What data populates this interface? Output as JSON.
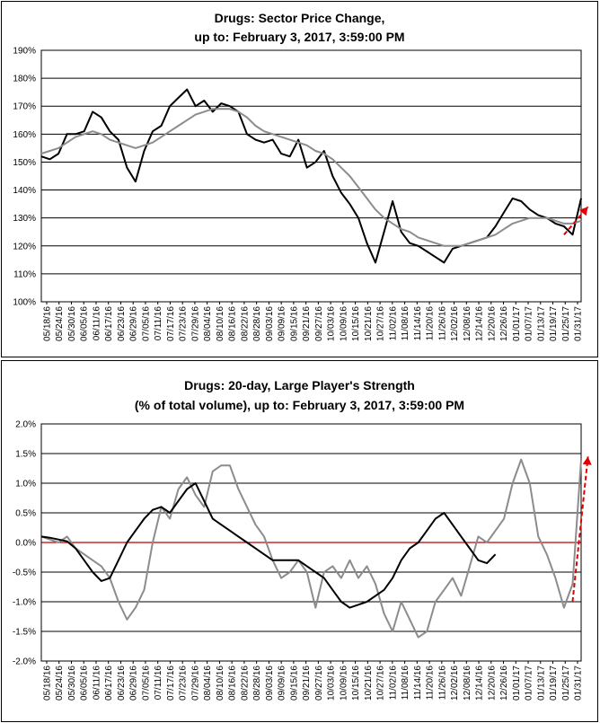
{
  "charts": [
    {
      "title_line1": "Drugs: Sector Price Change,",
      "title_line2": "up to: February 3, 2017, 3:59:00 PM"
    },
    {
      "title_line1": "Drugs: 20-day, Large Player's Strength",
      "title_line2": "(% of total volume), up to: February 3, 2017, 3:59:00 PM"
    }
  ],
  "colors": {
    "price": "#000000",
    "average": "#8c8c8c",
    "strength": "#8c8c8c",
    "zero_line": "#cc0000",
    "arrow": "#e00000"
  },
  "chart_data": [
    {
      "type": "line",
      "title": "Drugs: Sector Price Change, up to: February 3, 2017, 3:59:00 PM",
      "xlabel": "",
      "ylabel": "",
      "y_ticks": [
        "100%",
        "110%",
        "120%",
        "130%",
        "140%",
        "150%",
        "160%",
        "170%",
        "180%",
        "190%"
      ],
      "ylim": [
        100,
        190
      ],
      "grid": true,
      "x_ticks": [
        "05/18/16",
        "05/24/16",
        "05/30/16",
        "06/05/16",
        "06/11/16",
        "06/17/16",
        "06/23/16",
        "06/29/16",
        "07/05/16",
        "07/11/16",
        "07/17/16",
        "07/23/16",
        "07/29/16",
        "08/04/16",
        "08/10/16",
        "08/16/16",
        "08/22/16",
        "08/28/16",
        "09/03/16",
        "09/09/16",
        "09/15/16",
        "09/21/16",
        "09/27/16",
        "10/03/16",
        "10/09/16",
        "10/15/16",
        "10/21/16",
        "10/27/16",
        "11/02/16",
        "11/08/16",
        "11/14/16",
        "11/20/16",
        "11/26/16",
        "12/02/16",
        "12/08/16",
        "12/14/16",
        "12/20/16",
        "12/26/16",
        "01/01/17",
        "01/07/17",
        "01/13/17",
        "01/19/17",
        "01/25/17",
        "01/31/17"
      ],
      "series": [
        {
          "values": [
            [
              0,
              152
            ],
            [
              1,
              151
            ],
            [
              2,
              153
            ],
            [
              3,
              160
            ],
            [
              4,
              160
            ],
            [
              5,
              161
            ],
            [
              6,
              168
            ],
            [
              7,
              166
            ],
            [
              8,
              161
            ],
            [
              9,
              158
            ],
            [
              10,
              148
            ],
            [
              11,
              143
            ],
            [
              12,
              154
            ],
            [
              13,
              161
            ],
            [
              14,
              163
            ],
            [
              15,
              170
            ],
            [
              16,
              173
            ],
            [
              17,
              176
            ],
            [
              18,
              170
            ],
            [
              19,
              172
            ],
            [
              20,
              168
            ],
            [
              21,
              171
            ],
            [
              22,
              170
            ],
            [
              23,
              168
            ],
            [
              24,
              160
            ],
            [
              25,
              158
            ],
            [
              26,
              157
            ],
            [
              27,
              158
            ],
            [
              28,
              153
            ],
            [
              29,
              152
            ],
            [
              30,
              158
            ],
            [
              31,
              148
            ],
            [
              32,
              150
            ],
            [
              33,
              154
            ],
            [
              34,
              145
            ],
            [
              35,
              139
            ],
            [
              36,
              135
            ],
            [
              37,
              130
            ],
            [
              38,
              121
            ],
            [
              39,
              114
            ],
            [
              40,
              125
            ],
            [
              41,
              136
            ],
            [
              42,
              125
            ],
            [
              43,
              121
            ],
            [
              44,
              120
            ],
            [
              45,
              118
            ],
            [
              46,
              116
            ],
            [
              47,
              114
            ],
            [
              48,
              119
            ],
            [
              49,
              120
            ],
            [
              50,
              121
            ],
            [
              51,
              122
            ],
            [
              52,
              123
            ],
            [
              53,
              127
            ],
            [
              54,
              132
            ],
            [
              55,
              137
            ],
            [
              56,
              136
            ],
            [
              57,
              133
            ],
            [
              58,
              131
            ],
            [
              59,
              130
            ],
            [
              60,
              128
            ],
            [
              61,
              127
            ],
            [
              62,
              124
            ],
            [
              63,
              137
            ]
          ]
        },
        {
          "values": [
            [
              0,
              153
            ],
            [
              1,
              154
            ],
            [
              2,
              155
            ],
            [
              3,
              157
            ],
            [
              4,
              159
            ],
            [
              5,
              160
            ],
            [
              6,
              161
            ],
            [
              7,
              160
            ],
            [
              8,
              158
            ],
            [
              9,
              157
            ],
            [
              10,
              156
            ],
            [
              11,
              155
            ],
            [
              12,
              156
            ],
            [
              13,
              157
            ],
            [
              14,
              159
            ],
            [
              15,
              161
            ],
            [
              16,
              163
            ],
            [
              17,
              165
            ],
            [
              18,
              167
            ],
            [
              19,
              168
            ],
            [
              20,
              169
            ],
            [
              21,
              169
            ],
            [
              22,
              169
            ],
            [
              23,
              168
            ],
            [
              24,
              166
            ],
            [
              25,
              163
            ],
            [
              26,
              161
            ],
            [
              27,
              160
            ],
            [
              28,
              159
            ],
            [
              29,
              158
            ],
            [
              30,
              157
            ],
            [
              31,
              156
            ],
            [
              32,
              154
            ],
            [
              33,
              153
            ],
            [
              34,
              151
            ],
            [
              35,
              148
            ],
            [
              36,
              145
            ],
            [
              37,
              141
            ],
            [
              38,
              137
            ],
            [
              39,
              133
            ],
            [
              40,
              130
            ],
            [
              41,
              128
            ],
            [
              42,
              126
            ],
            [
              43,
              125
            ],
            [
              44,
              123
            ],
            [
              45,
              122
            ],
            [
              46,
              121
            ],
            [
              47,
              120
            ],
            [
              48,
              120
            ],
            [
              49,
              120
            ],
            [
              50,
              121
            ],
            [
              51,
              122
            ],
            [
              52,
              123
            ],
            [
              53,
              124
            ],
            [
              54,
              126
            ],
            [
              55,
              128
            ],
            [
              56,
              129
            ],
            [
              57,
              130
            ],
            [
              58,
              130
            ],
            [
              59,
              130
            ],
            [
              60,
              129
            ],
            [
              61,
              128
            ],
            [
              62,
              128
            ],
            [
              63,
              129
            ]
          ]
        }
      ]
    },
    {
      "type": "line",
      "title": "Drugs: 20-day, Large Player's Strength (% of total volume), up to: February 3, 2017, 3:59:00 PM",
      "xlabel": "",
      "ylabel": "",
      "y_ticks": [
        "-2.0%",
        "-1.5%",
        "-1.0%",
        "-0.5%",
        "0.0%",
        "0.5%",
        "1.0%",
        "1.5%",
        "2.0%"
      ],
      "ylim": [
        -2.0,
        2.0
      ],
      "grid": true,
      "x_ticks": [
        "05/18/16",
        "05/24/16",
        "05/30/16",
        "06/05/16",
        "06/11/16",
        "06/17/16",
        "06/23/16",
        "06/29/16",
        "07/05/16",
        "07/11/16",
        "07/17/16",
        "07/23/16",
        "07/29/16",
        "08/04/16",
        "08/10/16",
        "08/16/16",
        "08/22/16",
        "08/28/16",
        "09/03/16",
        "09/09/16",
        "09/15/16",
        "09/21/16",
        "09/27/16",
        "10/03/16",
        "10/09/16",
        "10/15/16",
        "10/21/16",
        "10/27/16",
        "11/02/16",
        "11/08/16",
        "11/14/16",
        "11/20/16",
        "11/26/16",
        "12/02/16",
        "12/08/16",
        "12/14/16",
        "12/20/16",
        "12/26/16",
        "01/01/17",
        "01/07/17",
        "01/13/17",
        "01/19/17",
        "01/25/17",
        "01/31/17"
      ],
      "series": [
        {
          "values": [
            [
              0,
              0.1
            ],
            [
              1,
              0.05
            ],
            [
              2,
              0.0
            ],
            [
              3,
              0.1
            ],
            [
              4,
              -0.1
            ],
            [
              5,
              -0.2
            ],
            [
              6,
              -0.3
            ],
            [
              7,
              -0.4
            ],
            [
              8,
              -0.6
            ],
            [
              9,
              -1.0
            ],
            [
              10,
              -1.3
            ],
            [
              11,
              -1.1
            ],
            [
              12,
              -0.8
            ],
            [
              13,
              0.0
            ],
            [
              14,
              0.6
            ],
            [
              15,
              0.4
            ],
            [
              16,
              0.9
            ],
            [
              17,
              1.1
            ],
            [
              18,
              0.8
            ],
            [
              19,
              0.6
            ],
            [
              20,
              1.2
            ],
            [
              21,
              1.3
            ],
            [
              22,
              1.3
            ],
            [
              23,
              0.9
            ],
            [
              24,
              0.6
            ],
            [
              25,
              0.3
            ],
            [
              26,
              0.1
            ],
            [
              27,
              -0.3
            ],
            [
              28,
              -0.6
            ],
            [
              29,
              -0.5
            ],
            [
              30,
              -0.3
            ],
            [
              31,
              -0.5
            ],
            [
              32,
              -1.1
            ],
            [
              33,
              -0.5
            ],
            [
              34,
              -0.4
            ],
            [
              35,
              -0.6
            ],
            [
              36,
              -0.3
            ],
            [
              37,
              -0.6
            ],
            [
              38,
              -0.4
            ],
            [
              39,
              -0.7
            ],
            [
              40,
              -1.2
            ],
            [
              41,
              -1.5
            ],
            [
              42,
              -1.0
            ],
            [
              43,
              -1.3
            ],
            [
              44,
              -1.6
            ],
            [
              45,
              -1.5
            ],
            [
              46,
              -1.0
            ],
            [
              47,
              -0.8
            ],
            [
              48,
              -0.6
            ],
            [
              49,
              -0.9
            ],
            [
              50,
              -0.4
            ],
            [
              51,
              0.1
            ],
            [
              52,
              0.0
            ],
            [
              53,
              0.2
            ],
            [
              54,
              0.4
            ],
            [
              55,
              1.0
            ],
            [
              56,
              1.4
            ],
            [
              57,
              1.0
            ],
            [
              58,
              0.1
            ],
            [
              59,
              -0.2
            ],
            [
              60,
              -0.6
            ],
            [
              61,
              -1.1
            ],
            [
              62,
              -0.7
            ],
            [
              63,
              1.4
            ]
          ]
        },
        {
          "values": [
            [
              0,
              0.1
            ],
            [
              1,
              0.08
            ],
            [
              2,
              0.05
            ],
            [
              3,
              0.02
            ],
            [
              4,
              -0.1
            ],
            [
              5,
              -0.3
            ],
            [
              6,
              -0.5
            ],
            [
              7,
              -0.65
            ],
            [
              8,
              -0.6
            ],
            [
              9,
              -0.3
            ],
            [
              10,
              0.0
            ],
            [
              11,
              0.2
            ],
            [
              12,
              0.4
            ],
            [
              13,
              0.55
            ],
            [
              14,
              0.6
            ],
            [
              15,
              0.5
            ],
            [
              16,
              0.7
            ],
            [
              17,
              0.9
            ],
            [
              18,
              1.0
            ],
            [
              19,
              0.7
            ],
            [
              20,
              0.4
            ],
            [
              21,
              0.3
            ],
            [
              22,
              0.2
            ],
            [
              23,
              0.1
            ],
            [
              24,
              0.0
            ],
            [
              25,
              -0.1
            ],
            [
              26,
              -0.2
            ],
            [
              27,
              -0.3
            ],
            [
              28,
              -0.3
            ],
            [
              29,
              -0.3
            ],
            [
              30,
              -0.3
            ],
            [
              31,
              -0.4
            ],
            [
              32,
              -0.5
            ],
            [
              33,
              -0.6
            ],
            [
              34,
              -0.8
            ],
            [
              35,
              -1.0
            ],
            [
              36,
              -1.1
            ],
            [
              37,
              -1.05
            ],
            [
              38,
              -1.0
            ],
            [
              39,
              -0.9
            ],
            [
              40,
              -0.8
            ],
            [
              41,
              -0.6
            ],
            [
              42,
              -0.3
            ],
            [
              43,
              -0.1
            ],
            [
              44,
              0.0
            ],
            [
              45,
              0.2
            ],
            [
              46,
              0.4
            ],
            [
              47,
              0.5
            ],
            [
              48,
              0.3
            ],
            [
              49,
              0.1
            ],
            [
              50,
              -0.1
            ],
            [
              51,
              -0.3
            ],
            [
              52,
              -0.35
            ],
            [
              53,
              -0.2
            ]
          ]
        }
      ]
    }
  ]
}
